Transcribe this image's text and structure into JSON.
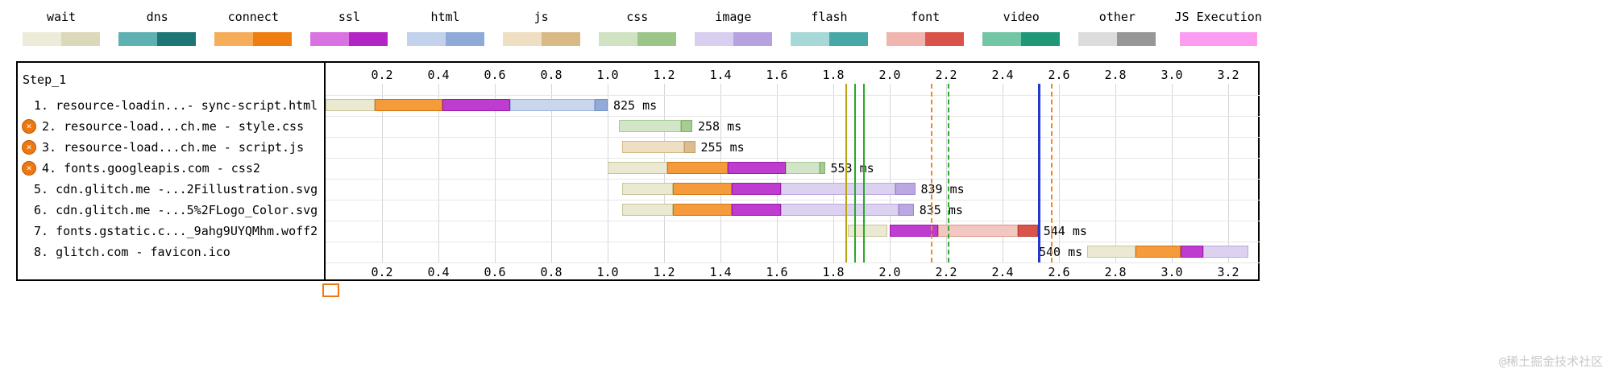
{
  "watermark": "@稀土掘金技术社区",
  "icons": {
    "error_glyph": "✕"
  },
  "legend": {
    "items": [
      {
        "label": "wait",
        "light": "#eeebd8",
        "dark": "#dcd8ba"
      },
      {
        "label": "dns",
        "light": "#5fb0b0",
        "dark": "#1d7575"
      },
      {
        "label": "connect",
        "light": "#f5ad5a",
        "dark": "#ee7d12"
      },
      {
        "label": "ssl",
        "light": "#d973e2",
        "dark": "#b224c4"
      },
      {
        "label": "html",
        "light": "#c2d2ec",
        "dark": "#8fa9d8"
      },
      {
        "label": "js",
        "light": "#eedfc2",
        "dark": "#d9ba85"
      },
      {
        "label": "css",
        "light": "#cfe3c2",
        "dark": "#9cc687"
      },
      {
        "label": "image",
        "light": "#d9cef0",
        "dark": "#b6a2e0"
      },
      {
        "label": "flash",
        "light": "#a6d8d8",
        "dark": "#48a8a8"
      },
      {
        "label": "font",
        "light": "#f0b5ae",
        "dark": "#d9534a"
      },
      {
        "label": "video",
        "light": "#72c6a6",
        "dark": "#1f9878"
      },
      {
        "label": "other",
        "light": "#dcdcdc",
        "dark": "#979797"
      },
      {
        "label": "JS Execution",
        "light": "#fc9df2",
        "dark": "#fc9df2"
      }
    ]
  },
  "phase_colors": {
    "wait": {
      "bg": "#ece9d2",
      "border": "#c9c49a"
    },
    "dns": {
      "bg": "#1d7575",
      "border": "#155a5a"
    },
    "connect": {
      "bg": "#f59b3c",
      "border": "#cf7512"
    },
    "ssl": {
      "bg": "#bf3cd0",
      "border": "#9a1ca8"
    },
    "html_light": {
      "bg": "#c9d7ee",
      "border": "#9fb5dc"
    },
    "html_dark": {
      "bg": "#93abd8",
      "border": "#7490c4"
    },
    "js_light": {
      "bg": "#eedfc2",
      "border": "#d4ba8a"
    },
    "js_dark": {
      "bg": "#dcbd8d",
      "border": "#c2a069"
    },
    "css_light": {
      "bg": "#d3e5c8",
      "border": "#a8cb95"
    },
    "css_dark": {
      "bg": "#a5cc92",
      "border": "#84b06f"
    },
    "image_light": {
      "bg": "#dcd2f0",
      "border": "#b9a7dd"
    },
    "image_dark": {
      "bg": "#bba8e2",
      "border": "#9c85cc"
    },
    "font_light": {
      "bg": "#f2c7c1",
      "border": "#dd948a"
    },
    "font_dark": {
      "bg": "#d9554b",
      "border": "#b83a31"
    }
  },
  "chart_data": {
    "type": "waterfall",
    "step_label": "Step_1",
    "time_unit_seconds": true,
    "ticks": [
      0.2,
      0.4,
      0.6,
      0.8,
      1.0,
      1.2,
      1.4,
      1.6,
      1.8,
      2.0,
      2.2,
      2.4,
      2.6,
      2.8,
      3.0,
      3.2
    ],
    "max_time": 3.32,
    "requests": [
      {
        "num": 1,
        "label": "1. resource-loadin...- sync-script.html",
        "error": false,
        "duration": "825 ms",
        "duration_side": "right",
        "segments": [
          [
            "wait",
            0.0,
            0.175
          ],
          [
            "connect",
            0.175,
            0.415
          ],
          [
            "ssl",
            0.415,
            0.655
          ],
          [
            "html_light",
            0.655,
            0.955
          ],
          [
            "html_dark",
            0.955,
            1.0
          ]
        ]
      },
      {
        "num": 2,
        "label": "2. resource-load...ch.me - style.css",
        "error": true,
        "duration": "258 ms",
        "duration_side": "right",
        "segments": [
          [
            "css_light",
            1.04,
            1.26
          ],
          [
            "css_dark",
            1.26,
            1.3
          ]
        ]
      },
      {
        "num": 3,
        "label": "3. resource-load...ch.me - script.js",
        "error": true,
        "duration": "255 ms",
        "duration_side": "right",
        "segments": [
          [
            "js_light",
            1.05,
            1.27
          ],
          [
            "js_dark",
            1.27,
            1.31
          ]
        ]
      },
      {
        "num": 4,
        "label": "4. fonts.googleapis.com - css2",
        "error": true,
        "duration": "553 ms",
        "duration_side": "right",
        "segments": [
          [
            "wait",
            1.0,
            1.21
          ],
          [
            "connect",
            1.21,
            1.425
          ],
          [
            "ssl",
            1.425,
            1.63
          ],
          [
            "css_light",
            1.63,
            1.75
          ],
          [
            "css_dark",
            1.75,
            1.77
          ]
        ]
      },
      {
        "num": 5,
        "label": "5. cdn.glitch.me -...2Fillustration.svg",
        "error": false,
        "duration": "839 ms",
        "duration_side": "right",
        "segments": [
          [
            "wait",
            1.05,
            1.23
          ],
          [
            "connect",
            1.23,
            1.44
          ],
          [
            "ssl",
            1.44,
            1.615
          ],
          [
            "image_light",
            1.615,
            2.02
          ],
          [
            "image_dark",
            2.02,
            2.09
          ]
        ]
      },
      {
        "num": 6,
        "label": "6. cdn.glitch.me -...5%2FLogo_Color.svg",
        "error": false,
        "duration": "835 ms",
        "duration_side": "right",
        "segments": [
          [
            "wait",
            1.05,
            1.23
          ],
          [
            "connect",
            1.23,
            1.44
          ],
          [
            "ssl",
            1.44,
            1.615
          ],
          [
            "image_light",
            1.615,
            2.03
          ],
          [
            "image_dark",
            2.03,
            2.085
          ]
        ]
      },
      {
        "num": 7,
        "label": "7. fonts.gstatic.c..._9ahg9UYQMhm.woff2",
        "error": false,
        "duration": "544 ms",
        "duration_side": "right",
        "segments": [
          [
            "wait",
            1.85,
            1.99
          ],
          [
            "ssl",
            2.0,
            2.17
          ],
          [
            "font_light",
            2.17,
            2.455
          ],
          [
            "font_dark",
            2.455,
            2.525
          ]
        ]
      },
      {
        "num": 8,
        "label": "8. glitch.com - favicon.ico",
        "error": false,
        "duration": "540 ms",
        "duration_side": "left",
        "segments": [
          [
            "wait",
            2.7,
            2.87
          ],
          [
            "connect",
            2.87,
            3.03
          ],
          [
            "ssl",
            3.03,
            3.11
          ],
          [
            "image_light",
            3.11,
            3.27
          ]
        ]
      }
    ],
    "events": [
      {
        "time": 1.845,
        "color": "#b8a414",
        "style": "solid",
        "width": 2
      },
      {
        "time": 1.878,
        "color": "#28a828",
        "style": "solid",
        "width": 2
      },
      {
        "time": 1.908,
        "color": "#28a828",
        "style": "solid",
        "width": 2
      },
      {
        "time": 2.148,
        "color": "#ef8a1e",
        "style": "dashed",
        "width": 2
      },
      {
        "time": 2.208,
        "color": "#2fa82f",
        "style": "dashed",
        "width": 2
      },
      {
        "time": 2.528,
        "color": "#2438cc",
        "style": "solid",
        "width": 3
      },
      {
        "time": 2.575,
        "color": "#ef8a1e",
        "style": "dashed",
        "width": 2
      }
    ]
  }
}
